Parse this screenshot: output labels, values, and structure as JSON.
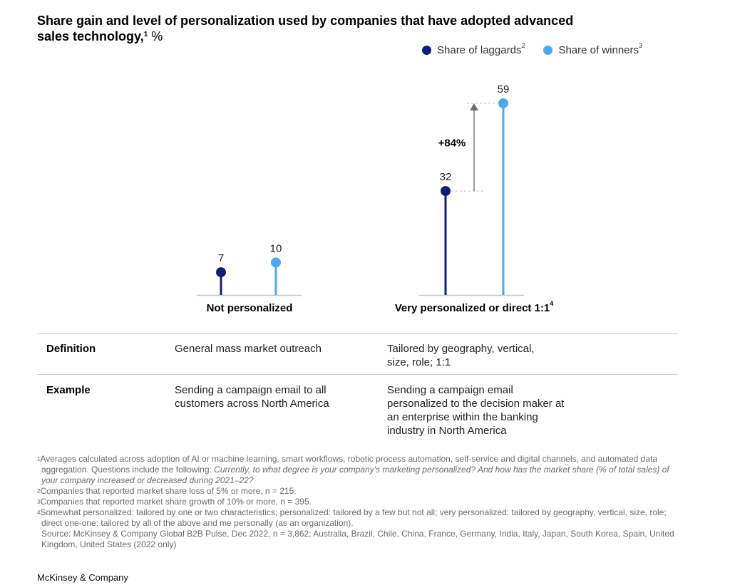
{
  "title": {
    "text": "Share gain and level of personalization used by companies that have adopted advanced sales technology,",
    "superscript": "1",
    "unit": "%"
  },
  "legend": [
    {
      "label": "Share of laggards",
      "superscript": "2",
      "color": "#0f1f78"
    },
    {
      "label": "Share of winners",
      "superscript": "3",
      "color": "#4ea8ee"
    }
  ],
  "chart_data": {
    "type": "lollipop",
    "title": "Share gain and level of personalization used by companies that have adopted advanced sales technology, %",
    "categories": [
      "Not personalized",
      "Very personalized or direct 1:1"
    ],
    "category_superscripts": [
      "",
      "4"
    ],
    "series": [
      {
        "name": "Share of laggards",
        "values": [
          7,
          32
        ],
        "color": "#0f1f78"
      },
      {
        "name": "Share of winners",
        "values": [
          10,
          59
        ],
        "color": "#4ea8ee"
      }
    ],
    "annotation": {
      "text": "+84%",
      "category": "Very personalized or direct 1:1",
      "from": 32,
      "to": 59
    },
    "ylim": [
      0,
      59
    ],
    "grid": false,
    "legend_position": "top-right"
  },
  "table": {
    "rows": [
      {
        "label": "Definition",
        "col1": "General mass market outreach",
        "col2": "Tailored by geography, vertical, size, role; 1:1"
      },
      {
        "label": "Example",
        "col1": "Sending a campaign email to all customers across North America",
        "col2": "Sending a campaign email personalized to the decision maker at an enterprise within the banking industry in North America"
      }
    ]
  },
  "footnotes": {
    "fn1_num": "1",
    "fn1_text": "Averages calculated across adoption of AI or machine learning, smart workflows, robotic process automation, self-service and digital channels, and automated data aggregation. Questions include the following: ",
    "fn1_italic": "Currently, to what degree is your company's marketing personalized? And how has the market share (% of total sales) of your company increased or decreased during 2021–22?",
    "fn2_num": "2",
    "fn2_text": "Companies that reported market share loss of 5% or more, n = 215.",
    "fn3_num": "3",
    "fn3_text": "Companies that reported market share growth of 10% or more, n = 395.",
    "fn4_num": "4",
    "fn4_text": "Somewhat personalized: tailored by one or two characteristics; personalized: tailored by a few but not all; very personalized: tailored by geography, vertical, size, role; direct one-one: tailored by all of the above and me personally (as an organization).",
    "source": "Source: McKinsey & Company Global B2B Pulse, Dec 2022, n = 3,862; Australia, Brazil, Chile, China, France, Germany, India, Italy, Japan, South Korea, Spain, United Kingdom, United States (2022 only)"
  },
  "brand": "McKinsey & Company"
}
